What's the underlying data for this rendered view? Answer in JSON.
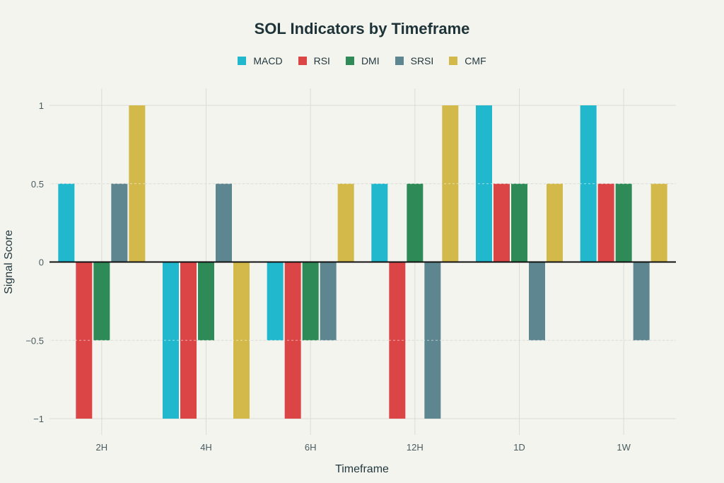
{
  "chart_data": {
    "type": "bar",
    "title": "SOL Indicators by Timeframe",
    "xlabel": "Timeframe",
    "ylabel": "Signal Score",
    "categories": [
      "2H",
      "4H",
      "6H",
      "12H",
      "1D",
      "1W"
    ],
    "ylim": [
      -1.1,
      1.1
    ],
    "yticks": [
      1,
      0.5,
      0,
      -0.5,
      -1
    ],
    "ytick_labels": [
      "1",
      "0.5",
      "0",
      "−0.5",
      "−1"
    ],
    "grid": true,
    "legend_position": "top-center",
    "series": [
      {
        "name": "MACD",
        "color": "#21b8cd",
        "values": [
          0.5,
          -1,
          -0.5,
          0.5,
          1,
          1
        ]
      },
      {
        "name": "RSI",
        "color": "#dc4546",
        "values": [
          -1,
          -1,
          -1,
          -1,
          0.5,
          0.5
        ]
      },
      {
        "name": "DMI",
        "color": "#2e8b57",
        "values": [
          -0.5,
          -0.5,
          -0.5,
          0.5,
          0.5,
          0.5
        ]
      },
      {
        "name": "SRSI",
        "color": "#5e8690",
        "values": [
          0.5,
          0.5,
          -0.5,
          -1,
          -0.5,
          -0.5
        ]
      },
      {
        "name": "CMF",
        "color": "#d2b94a",
        "values": [
          1,
          -1,
          0.5,
          1,
          0.5,
          0.5
        ]
      }
    ]
  }
}
